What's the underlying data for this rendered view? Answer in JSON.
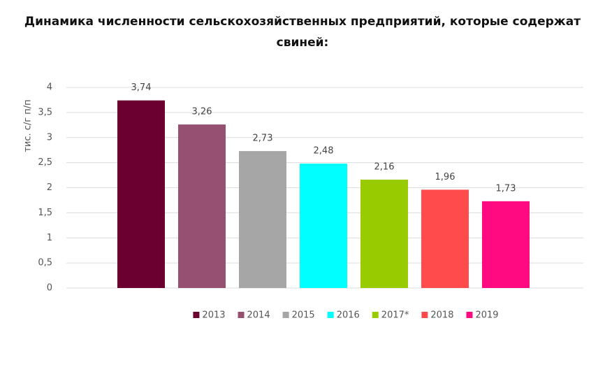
{
  "chart_data": {
    "type": "bar",
    "title": "Динамика численности сельскохозяйственных предприятий, которые содержат свиней:",
    "ylabel": "тис. с/г п/п",
    "categories": [
      null
    ],
    "series": [
      {
        "name": "2013",
        "color": "#6b0030",
        "values": [
          3.74
        ],
        "value_labels": [
          "3,74"
        ]
      },
      {
        "name": "2014",
        "color": "#965070",
        "values": [
          3.26
        ],
        "value_labels": [
          "3,26"
        ]
      },
      {
        "name": "2015",
        "color": "#a6a6a6",
        "values": [
          2.73
        ],
        "value_labels": [
          "2,73"
        ]
      },
      {
        "name": "2016",
        "color": "#00ffff",
        "values": [
          2.48
        ],
        "value_labels": [
          "2,48"
        ]
      },
      {
        "name": "2017*",
        "color": "#99cc00",
        "values": [
          2.16
        ],
        "value_labels": [
          "2,16"
        ]
      },
      {
        "name": "2018",
        "color": "#ff4b4b",
        "values": [
          1.96
        ],
        "value_labels": [
          "1,96"
        ]
      },
      {
        "name": "2019",
        "color": "#ff0a80",
        "values": [
          1.73
        ],
        "value_labels": [
          "1,73"
        ]
      }
    ],
    "ylim": [
      0,
      4
    ],
    "yticks": [
      0,
      {
        "value": 0.5,
        "label": "0,5"
      },
      1,
      {
        "value": 1.5,
        "label": "1,5"
      },
      2,
      {
        "value": 2.5,
        "label": "2,5"
      },
      3,
      {
        "value": 3.5,
        "label": "3,5"
      },
      4
    ],
    "grid": true,
    "legend": "bottom"
  }
}
